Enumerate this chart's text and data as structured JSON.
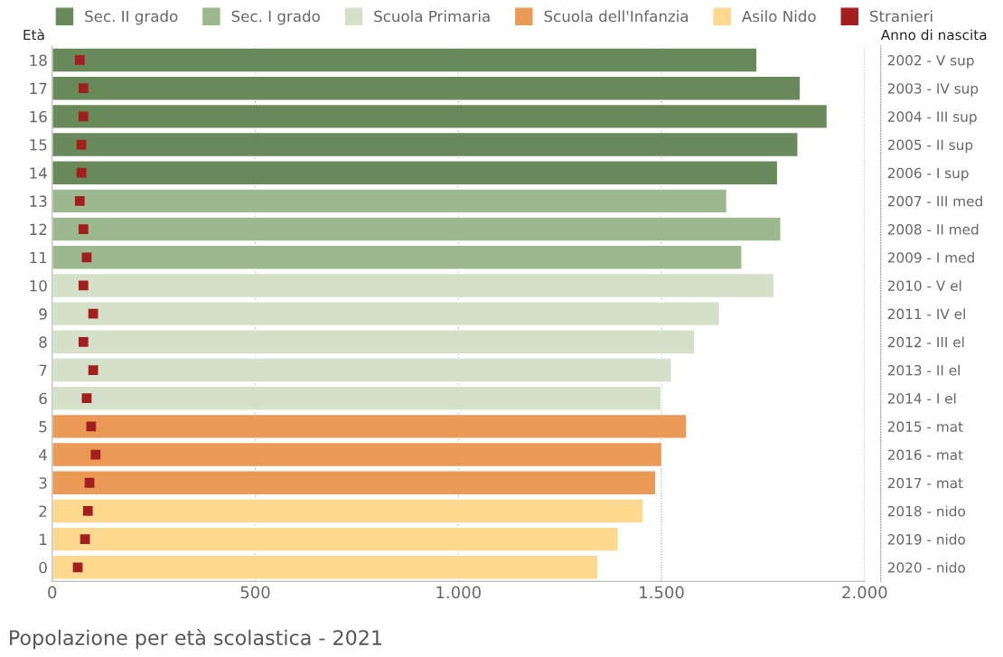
{
  "chart_data": {
    "type": "bar",
    "orientation": "horizontal",
    "title": "Popolazione per età scolastica - 2021",
    "ylabel": "Età",
    "y2label": "Anno di nascita",
    "categories": [
      "18",
      "17",
      "16",
      "15",
      "14",
      "13",
      "12",
      "11",
      "10",
      "9",
      "8",
      "7",
      "6",
      "5",
      "4",
      "3",
      "2",
      "1",
      "0"
    ],
    "y2_categories": [
      "2002 - V sup",
      "2003 - IV sup",
      "2004 - III sup",
      "2005 - II sup",
      "2006 - I sup",
      "2007 - III med",
      "2008 - II med",
      "2009 - I med",
      "2010 - V el",
      "2011 - IV el",
      "2012 - III el",
      "2013 - II el",
      "2014 - I el",
      "2015 - mat",
      "2016 - mat",
      "2017 - mat",
      "2018 - nido",
      "2019 - nido",
      "2020 - nido"
    ],
    "series": [
      {
        "name": "Sec. II grado",
        "color": "#68895a",
        "values": [
          1735,
          1842,
          1908,
          1836,
          1786,
          null,
          null,
          null,
          null,
          null,
          null,
          null,
          null,
          null,
          null,
          null,
          null,
          null,
          null
        ]
      },
      {
        "name": "Sec. I grado",
        "color": "#9cb88f",
        "values": [
          null,
          null,
          null,
          null,
          null,
          1661,
          1794,
          1698,
          null,
          null,
          null,
          null,
          null,
          null,
          null,
          null,
          null,
          null,
          null
        ]
      },
      {
        "name": "Scuola Primaria",
        "color": "#d5e0c8",
        "values": [
          null,
          null,
          null,
          null,
          null,
          null,
          null,
          null,
          1777,
          1643,
          1582,
          1525,
          1499,
          null,
          null,
          null,
          null,
          null,
          null
        ]
      },
      {
        "name": "Scuola dell'Infanzia",
        "color": "#ea9a55",
        "values": [
          null,
          null,
          null,
          null,
          null,
          null,
          null,
          null,
          null,
          null,
          null,
          null,
          null,
          1562,
          1501,
          1486,
          null,
          null,
          null
        ]
      },
      {
        "name": "Asilo Nido",
        "color": "#fdd88f",
        "values": [
          null,
          null,
          null,
          null,
          null,
          null,
          null,
          null,
          null,
          null,
          null,
          null,
          null,
          null,
          null,
          null,
          1455,
          1394,
          1344
        ]
      },
      {
        "name": "Stranieri",
        "type": "scatter",
        "marker": "square",
        "color": "#a31f1f",
        "values": [
          68,
          77,
          77,
          72,
          72,
          68,
          77,
          85,
          77,
          101,
          77,
          101,
          85,
          96,
          107,
          92,
          88,
          81,
          63
        ]
      }
    ],
    "xlim": [
      0,
      2000
    ],
    "xticks": [
      0,
      500,
      {
        "value": 1000,
        "label": "1.000"
      },
      {
        "value": 1500,
        "label": "1.500"
      },
      {
        "value": 2000,
        "label": "2.000"
      }
    ],
    "grid": "x",
    "legend": "top"
  }
}
